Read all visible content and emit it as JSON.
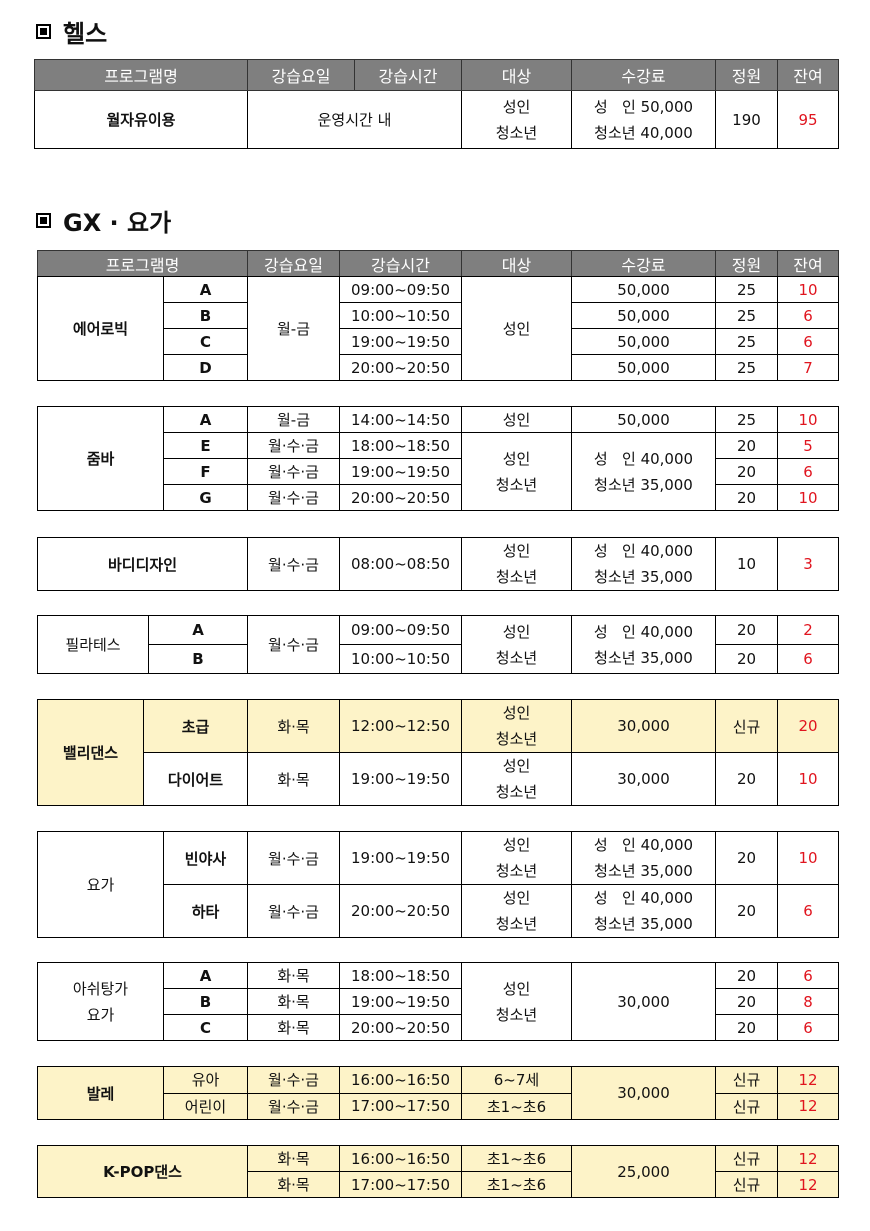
{
  "health": {
    "title": "헬스",
    "headers": [
      "프로그램명",
      "강습요일",
      "강습시간",
      "대상",
      "수강료",
      "정원",
      "잔여"
    ],
    "row": {
      "program": "월자유이용",
      "schedule": "운영시간 내",
      "target": [
        "성인",
        "청소년"
      ],
      "fee": [
        "성   인 50,000",
        "청소년 40,000"
      ],
      "capacity": "190",
      "remaining": "95"
    }
  },
  "gx": {
    "title": "GX · 요가",
    "headers": [
      "프로그램명",
      "강습요일",
      "강습시간",
      "대상",
      "수강료",
      "정원",
      "잔여"
    ],
    "programs": [
      {
        "name": [
          "에어로빅"
        ],
        "classes": [
          {
            "sub": "A",
            "days": "월-금",
            "time": "09:00~09:50",
            "target": [
              "성인"
            ],
            "fee": [
              "50,000"
            ],
            "capacity": "25",
            "remaining": "10"
          },
          {
            "sub": "B",
            "time": "10:00~10:50",
            "fee": [
              "50,000"
            ],
            "capacity": "25",
            "remaining": "6"
          },
          {
            "sub": "C",
            "time": "19:00~19:50",
            "fee": [
              "50,000"
            ],
            "capacity": "25",
            "remaining": "6"
          },
          {
            "sub": "D",
            "time": "20:00~20:50",
            "fee": [
              "50,000"
            ],
            "capacity": "25",
            "remaining": "7"
          }
        ]
      },
      {
        "name": [
          "줌바"
        ],
        "classes": [
          {
            "sub": "A",
            "days": "월-금",
            "time": "14:00~14:50",
            "target": [
              "성인"
            ],
            "fee": [
              "50,000"
            ],
            "capacity": "25",
            "remaining": "10"
          },
          {
            "sub": "E",
            "days": "월·수·금",
            "time": "18:00~18:50",
            "target": [
              "성인",
              "청소년"
            ],
            "fee": [
              "성   인 40,000",
              "청소년 35,000"
            ],
            "capacity": "20",
            "remaining": "5"
          },
          {
            "sub": "F",
            "days": "월·수·금",
            "time": "19:00~19:50",
            "capacity": "20",
            "remaining": "6"
          },
          {
            "sub": "G",
            "days": "월·수·금",
            "time": "20:00~20:50",
            "capacity": "20",
            "remaining": "10"
          }
        ]
      },
      {
        "name": [
          "바디디자인"
        ],
        "classes": [
          {
            "days": "월·수·금",
            "time": "08:00~08:50",
            "target": [
              "성인",
              "청소년"
            ],
            "fee": [
              "성   인 40,000",
              "청소년 35,000"
            ],
            "capacity": "10",
            "remaining": "3"
          }
        ]
      },
      {
        "name": [
          "필라테스"
        ],
        "classes": [
          {
            "sub": "A",
            "days": "월·수·금",
            "time": "09:00~09:50",
            "target": [
              "성인",
              "청소년"
            ],
            "fee": [
              "성   인 40,000",
              "청소년 35,000"
            ],
            "capacity": "20",
            "remaining": "2"
          },
          {
            "sub": "B",
            "time": "10:00~10:50",
            "capacity": "20",
            "remaining": "6"
          }
        ]
      },
      {
        "name": [
          "밸리댄스"
        ],
        "classes": [
          {
            "sub": "초급",
            "days": "화·목",
            "time": "12:00~12:50",
            "target": [
              "성인",
              "청소년"
            ],
            "fee": [
              "30,000"
            ],
            "capacity": "신규",
            "remaining": "20"
          },
          {
            "sub": "다이어트",
            "days": "화·목",
            "time": "19:00~19:50",
            "target": [
              "성인",
              "청소년"
            ],
            "fee": [
              "30,000"
            ],
            "capacity": "20",
            "remaining": "10"
          }
        ]
      },
      {
        "name": [
          "요가"
        ],
        "classes": [
          {
            "sub": "빈야사",
            "days": "월·수·금",
            "time": "19:00~19:50",
            "target": [
              "성인",
              "청소년"
            ],
            "fee": [
              "성   인 40,000",
              "청소년 35,000"
            ],
            "capacity": "20",
            "remaining": "10"
          },
          {
            "sub": "하타",
            "days": "월·수·금",
            "time": "20:00~20:50",
            "target": [
              "성인",
              "청소년"
            ],
            "fee": [
              "성   인 40,000",
              "청소년 35,000"
            ],
            "capacity": "20",
            "remaining": "6"
          }
        ]
      },
      {
        "name": [
          "아쉬탕가",
          "요가"
        ],
        "classes": [
          {
            "sub": "A",
            "days": "화·목",
            "time": "18:00~18:50",
            "target": [
              "성인",
              "청소년"
            ],
            "fee": [
              "30,000"
            ],
            "capacity": "20",
            "remaining": "6"
          },
          {
            "sub": "B",
            "days": "화·목",
            "time": "19:00~19:50",
            "capacity": "20",
            "remaining": "8"
          },
          {
            "sub": "C",
            "days": "화·목",
            "time": "20:00~20:50",
            "capacity": "20",
            "remaining": "6"
          }
        ]
      },
      {
        "name": [
          "발레"
        ],
        "classes": [
          {
            "sub": "유아",
            "days": "월·수·금",
            "time": "16:00~16:50",
            "target": [
              "6~7세"
            ],
            "fee": [
              "30,000"
            ],
            "capacity": "신규",
            "remaining": "12"
          },
          {
            "sub": "어린이",
            "days": "월·수·금",
            "time": "17:00~17:50",
            "target": [
              "초1~초6"
            ],
            "capacity": "신규",
            "remaining": "12"
          }
        ]
      },
      {
        "name": [
          "K-POP댄스"
        ],
        "classes": [
          {
            "days": "화·목",
            "time": "16:00~16:50",
            "target": [
              "초1~초6"
            ],
            "fee": [
              "25,000"
            ],
            "capacity": "신규",
            "remaining": "12"
          },
          {
            "days": "화·목",
            "time": "17:00~17:50",
            "target": [
              "초1~초6"
            ],
            "capacity": "신규",
            "remaining": "12"
          }
        ]
      }
    ]
  },
  "colors": {
    "header_bg": "#7f7f7f",
    "highlight_bg": "#fdf3c8",
    "remaining_text": "#e0141e"
  }
}
